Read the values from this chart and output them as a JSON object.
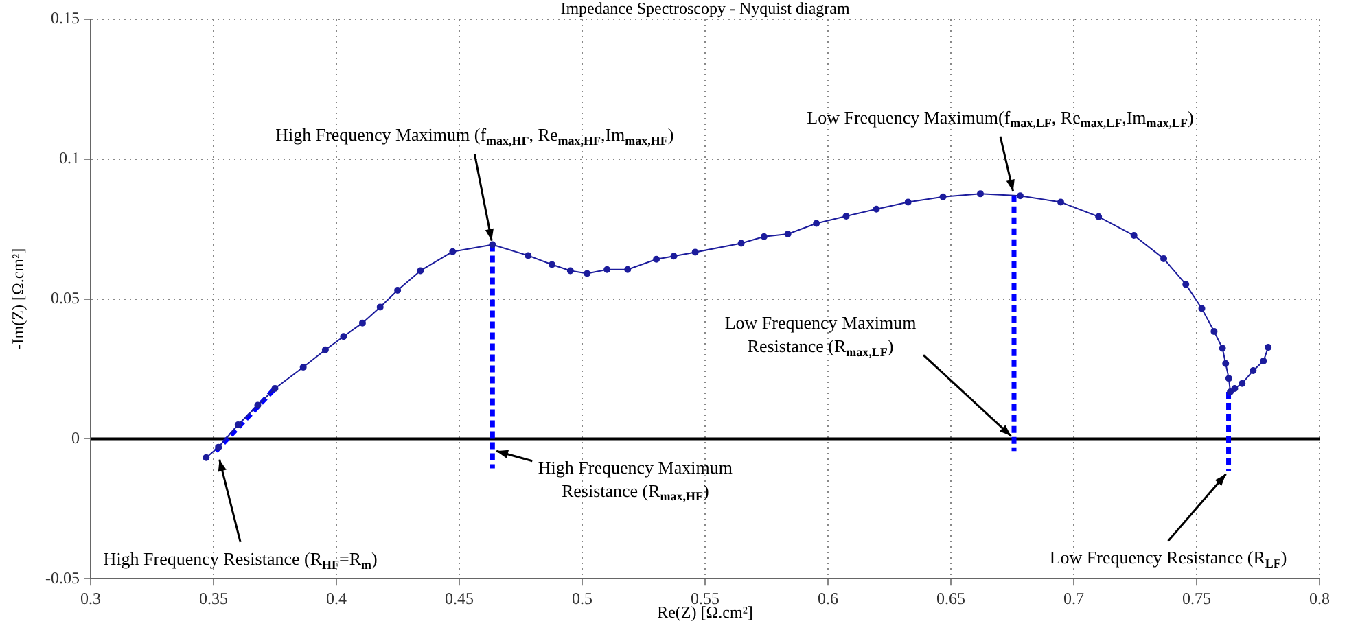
{
  "chart_data": {
    "type": "line",
    "title": "Impedance Spectroscopy - Nyquist diagram",
    "xlabel": "Re(Z) [Ω.cm²]",
    "ylabel": "-Im(Z) [Ω.cm²]",
    "xlim": [
      0.3,
      0.8
    ],
    "xticks": [
      0.3,
      0.35,
      0.4,
      0.45,
      0.5,
      0.55,
      0.6,
      0.65,
      0.7,
      0.75,
      0.8
    ],
    "ylim": [
      -0.05,
      0.15
    ],
    "yticks": [
      -0.05,
      0,
      0.05,
      0.1,
      0.15
    ],
    "grid": true,
    "legend": false,
    "series": [
      {
        "color": "#1c1c9c",
        "marker": "circle",
        "line_style": "solid",
        "x": [
          0.347,
          0.352,
          0.36,
          0.368,
          0.375,
          0.3865,
          0.3955,
          0.4029,
          0.4106,
          0.4178,
          0.4249,
          0.4342,
          0.4473,
          0.4635,
          0.478,
          0.4877,
          0.4952,
          0.502,
          0.5101,
          0.5185,
          0.5302,
          0.5373,
          0.546,
          0.5647,
          0.574,
          0.5837,
          0.5953,
          0.6074,
          0.6197,
          0.6326,
          0.6468,
          0.662,
          0.6782,
          0.6947,
          0.7101,
          0.7245,
          0.7366,
          0.7456,
          0.7521,
          0.7571,
          0.7605,
          0.7618,
          0.7631,
          0.7637,
          0.7655,
          0.7685,
          0.773,
          0.7772,
          0.7791
        ],
        "values": [
          -0.0067,
          -0.003,
          0.005,
          0.012,
          0.018,
          0.0256,
          0.0318,
          0.0366,
          0.0414,
          0.0471,
          0.0531,
          0.0601,
          0.0669,
          0.0694,
          0.0655,
          0.0623,
          0.0601,
          0.0591,
          0.0605,
          0.0605,
          0.0642,
          0.0653,
          0.0667,
          0.0699,
          0.0723,
          0.0732,
          0.077,
          0.0796,
          0.0821,
          0.0846,
          0.0865,
          0.0876,
          0.0869,
          0.0846,
          0.0794,
          0.0727,
          0.0644,
          0.0552,
          0.0466,
          0.0384,
          0.0324,
          0.0269,
          0.0216,
          0.0168,
          0.018,
          0.0198,
          0.0244,
          0.0278,
          0.0327
        ]
      },
      {
        "color": "#0000ff",
        "marker": "none",
        "line_style": "dashed",
        "x": [
          0.351,
          0.375
        ],
        "values": [
          -0.0044,
          0.018
        ]
      },
      {
        "color": "#0000ff",
        "marker": "none",
        "line_style": "dashed",
        "x": [
          0.4635,
          0.4635
        ],
        "values": [
          0.0694,
          -0.0106
        ]
      },
      {
        "color": "#0000ff",
        "marker": "none",
        "line_style": "dashed",
        "x": [
          0.6757,
          0.6757
        ],
        "values": [
          0.087,
          -0.0044
        ]
      },
      {
        "color": "#0000ff",
        "marker": "none",
        "line_style": "dashed",
        "x": [
          0.763,
          0.763
        ],
        "values": [
          0.0168,
          -0.0115
        ]
      }
    ],
    "ref_lines": [
      {
        "axis": "y",
        "value": 0,
        "color": "#000000"
      }
    ],
    "annotations": [
      {
        "text": "High Frequency Resistance (R$_{HF}$=R$_{m}$)",
        "x": 0.352,
        "y": -0.006
      },
      {
        "text": "High Frequency Maximum (f$_{max,HF}$, Re$_{max,HF}$,Im$_{max,HF}$)",
        "x": 0.4635,
        "y": 0.0694
      },
      {
        "text": "Low Frequency Maximum(f$_{max,LF}$, Re$_{max,LF}$,Im$_{max,LF}$)",
        "x": 0.6757,
        "y": 0.087
      },
      {
        "text": "Low Frequency Maximum Resistance (R$_{max,LF}$)",
        "x": 0.6757,
        "y": 0
      },
      {
        "text": "High Frequency Maximum Resistance (R$_{max,HF}$)",
        "x": 0.4635,
        "y": -0.004
      },
      {
        "text": "Low Frequency Resistance (R$_{LF}$)",
        "x": 0.763,
        "y": -0.0115
      }
    ]
  }
}
